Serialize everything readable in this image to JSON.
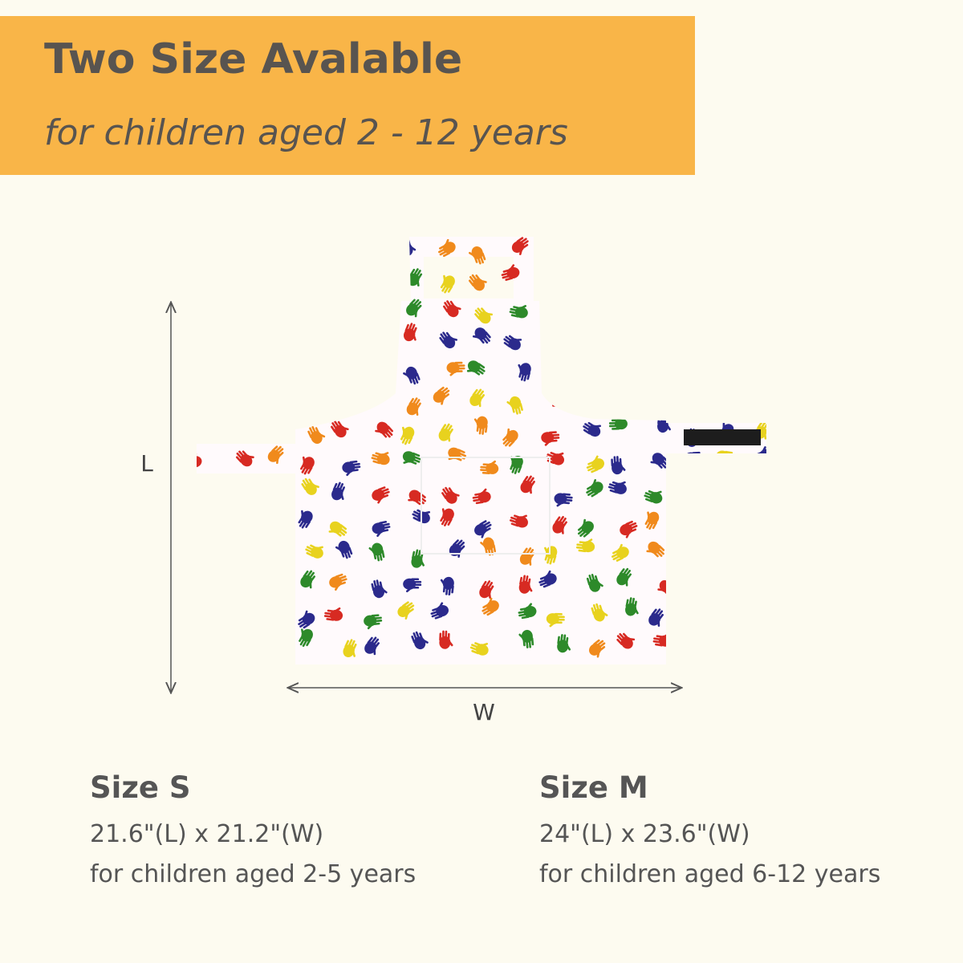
{
  "header": {
    "title": "Two Size Avalable",
    "subtitle": "for children aged 2 - 12 years"
  },
  "diagram": {
    "length_label": "L",
    "width_label": "W"
  },
  "sizes": [
    {
      "name": "Size S",
      "dimensions": "21.6\"(L) x 21.2\"(W)",
      "age": "for children aged 2-5 years"
    },
    {
      "name": "Size M",
      "dimensions": "24\"(L) x 23.6\"(W)",
      "age": "for children aged 6-12 years"
    }
  ]
}
